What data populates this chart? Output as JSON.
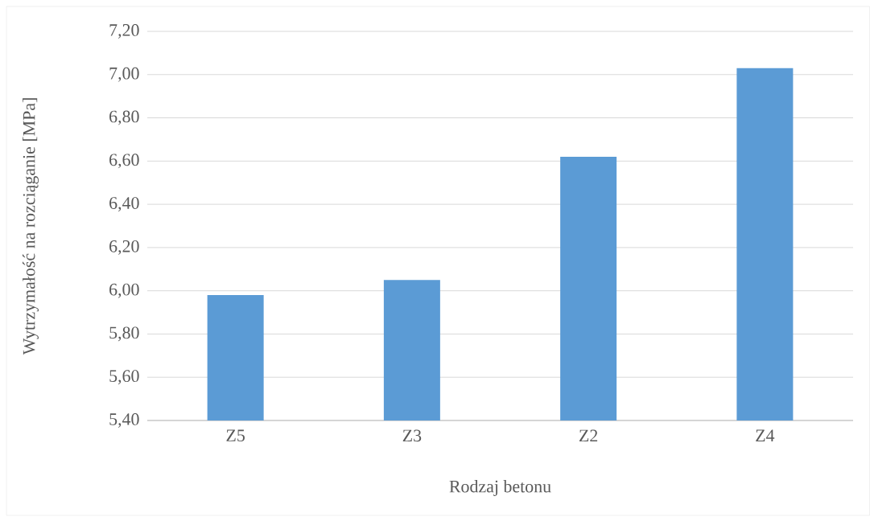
{
  "chart_data": {
    "type": "bar",
    "xlabel": "Rodzaj betonu",
    "ylabel": "Wytrzymałość na rozciąganie [MPa]",
    "categories": [
      "Z5",
      "Z3",
      "Z2",
      "Z4"
    ],
    "values": [
      5.98,
      6.05,
      6.62,
      7.03
    ],
    "color": "#5b9bd5",
    "ylim": [
      5.4,
      7.2
    ],
    "yticks": [
      {
        "value": 5.4,
        "label": "5,40"
      },
      {
        "value": 5.6,
        "label": "5,60"
      },
      {
        "value": 5.8,
        "label": "5,80"
      },
      {
        "value": 6.0,
        "label": "6,00"
      },
      {
        "value": 6.2,
        "label": "6,20"
      },
      {
        "value": 6.4,
        "label": "6,40"
      },
      {
        "value": 6.6,
        "label": "6,60"
      },
      {
        "value": 6.8,
        "label": "6,80"
      },
      {
        "value": 7.0,
        "label": "7,00"
      },
      {
        "value": 7.2,
        "label": "7,20"
      }
    ],
    "grid": "y"
  }
}
